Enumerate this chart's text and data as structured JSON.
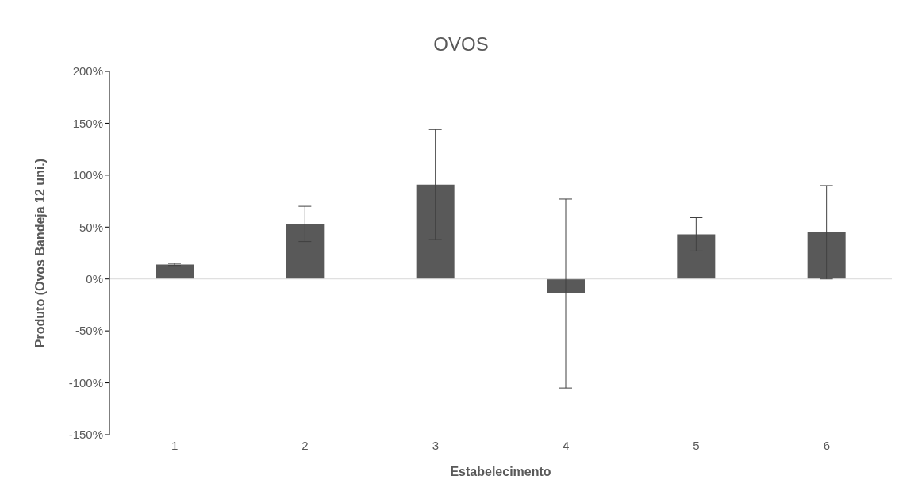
{
  "chart_data": {
    "type": "bar",
    "title": "OVOS",
    "xlabel": "Estabelecimento",
    "ylabel": "Produto (Ovos Bandeja  12 uni.)",
    "categories": [
      "1",
      "2",
      "3",
      "4",
      "5",
      "6"
    ],
    "values": [
      14,
      53,
      91,
      -14,
      43,
      45
    ],
    "errors": [
      1,
      17,
      53,
      91,
      16,
      45
    ],
    "color": "#595959",
    "ylim": [
      -150,
      200
    ],
    "yticks": [
      {
        "value": -150,
        "label": "-150%"
      },
      {
        "value": -100,
        "label": "-100%"
      },
      {
        "value": -50,
        "label": "-50%"
      },
      {
        "value": 0,
        "label": "0%"
      },
      {
        "value": 50,
        "label": "50%"
      },
      {
        "value": 100,
        "label": "100%"
      },
      {
        "value": 150,
        "label": "150%"
      },
      {
        "value": 200,
        "label": "200%"
      }
    ],
    "ref_lines": [
      {
        "axis": "y",
        "value": 0,
        "color": "#d9d9d9"
      }
    ],
    "grid": false,
    "legend": false
  }
}
